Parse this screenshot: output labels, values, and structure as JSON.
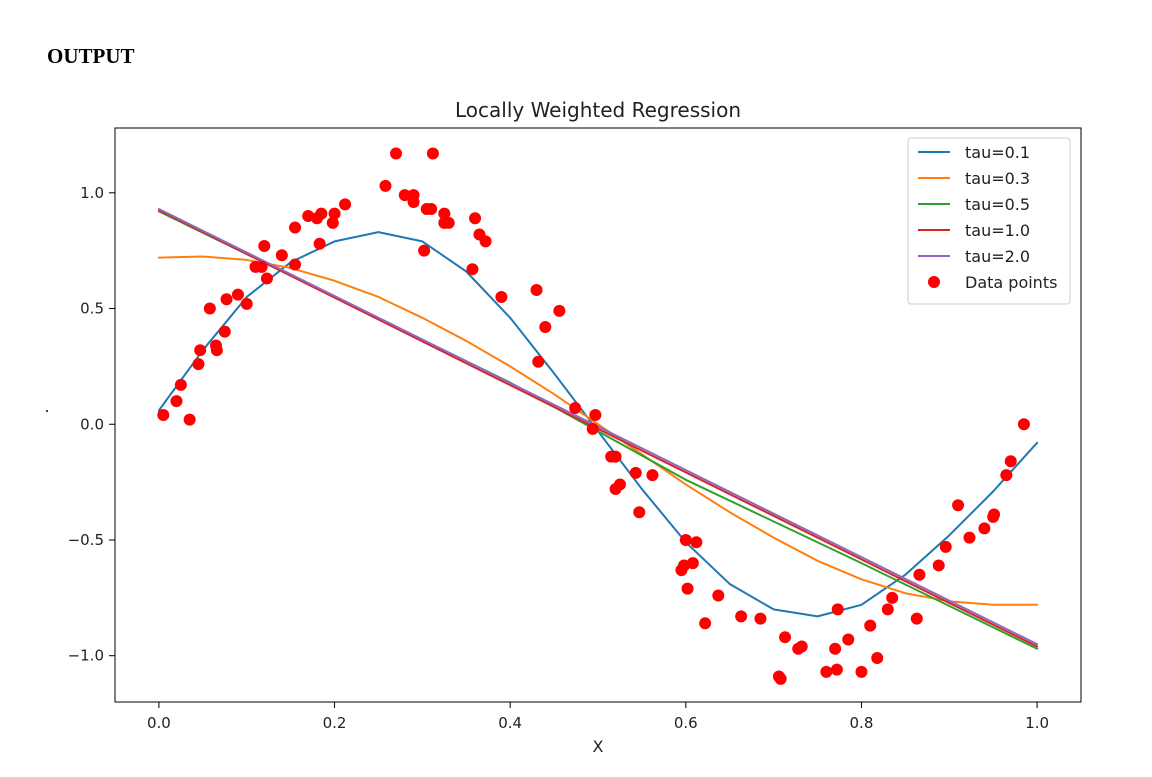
{
  "page": {
    "heading": "OUTPUT"
  },
  "chart_data": {
    "type": "line",
    "title": "Locally Weighted Regression",
    "xlabel": "X",
    "ylabel": ".",
    "xlim": [
      -0.05,
      1.05
    ],
    "ylim": [
      -1.2,
      1.28
    ],
    "xticks": [
      0.0,
      0.2,
      0.4,
      0.6,
      0.8,
      1.0
    ],
    "xtick_labels": [
      "0.0",
      "0.2",
      "0.4",
      "0.6",
      "0.8",
      "1.0"
    ],
    "yticks": [
      -1.0,
      -0.5,
      0.0,
      0.5,
      1.0
    ],
    "ytick_labels": [
      "−1.0",
      "−0.5",
      "0.0",
      "0.5",
      "1.0"
    ],
    "grid": false,
    "legend_placement": "top-right",
    "series": [
      {
        "name": "tau=0.1",
        "color": "#1f77b4",
        "x": [
          0,
          0.05,
          0.1,
          0.15,
          0.2,
          0.25,
          0.3,
          0.35,
          0.4,
          0.45,
          0.5,
          0.55,
          0.6,
          0.65,
          0.7,
          0.75,
          0.8,
          0.85,
          0.9,
          0.95,
          1.0
        ],
        "y": [
          0.06,
          0.32,
          0.55,
          0.7,
          0.79,
          0.83,
          0.79,
          0.66,
          0.46,
          0.22,
          -0.03,
          -0.28,
          -0.51,
          -0.69,
          -0.8,
          -0.83,
          -0.78,
          -0.65,
          -0.48,
          -0.29,
          -0.08
        ]
      },
      {
        "name": "tau=0.3",
        "color": "#ff7f0e",
        "x": [
          0,
          0.05,
          0.1,
          0.15,
          0.2,
          0.25,
          0.3,
          0.35,
          0.4,
          0.45,
          0.5,
          0.55,
          0.6,
          0.65,
          0.7,
          0.75,
          0.8,
          0.85,
          0.9,
          0.95,
          1.0
        ],
        "y": [
          0.72,
          0.725,
          0.71,
          0.675,
          0.62,
          0.55,
          0.46,
          0.36,
          0.25,
          0.13,
          0.0,
          -0.13,
          -0.26,
          -0.38,
          -0.49,
          -0.59,
          -0.67,
          -0.73,
          -0.765,
          -0.78,
          -0.78
        ]
      },
      {
        "name": "tau=0.5",
        "color": "#2ca02c",
        "x": [
          0,
          0.2,
          0.4,
          0.5,
          0.6,
          0.8,
          1.0
        ],
        "y": [
          0.92,
          0.55,
          0.18,
          -0.03,
          -0.24,
          -0.6,
          -0.97
        ]
      },
      {
        "name": "tau=1.0",
        "color": "#d62728",
        "x": [
          0,
          0.5,
          1.0
        ],
        "y": [
          0.925,
          -0.02,
          -0.96
        ]
      },
      {
        "name": "tau=2.0",
        "color": "#9467bd",
        "x": [
          0,
          0.5,
          1.0
        ],
        "y": [
          0.93,
          -0.01,
          -0.95
        ]
      }
    ],
    "scatter": {
      "name": "Data points",
      "color": "#ff0000",
      "points": [
        [
          0.005,
          0.04
        ],
        [
          0.02,
          0.1
        ],
        [
          0.025,
          0.17
        ],
        [
          0.035,
          0.02
        ],
        [
          0.045,
          0.26
        ],
        [
          0.047,
          0.32
        ],
        [
          0.058,
          0.5
        ],
        [
          0.065,
          0.34
        ],
        [
          0.066,
          0.32
        ],
        [
          0.075,
          0.4
        ],
        [
          0.077,
          0.54
        ],
        [
          0.09,
          0.56
        ],
        [
          0.1,
          0.52
        ],
        [
          0.11,
          0.68
        ],
        [
          0.117,
          0.68
        ],
        [
          0.12,
          0.77
        ],
        [
          0.123,
          0.63
        ],
        [
          0.14,
          0.73
        ],
        [
          0.155,
          0.69
        ],
        [
          0.155,
          0.85
        ],
        [
          0.17,
          0.9
        ],
        [
          0.18,
          0.89
        ],
        [
          0.183,
          0.78
        ],
        [
          0.185,
          0.91
        ],
        [
          0.198,
          0.87
        ],
        [
          0.2,
          0.91
        ],
        [
          0.212,
          0.95
        ],
        [
          0.258,
          1.03
        ],
        [
          0.27,
          1.17
        ],
        [
          0.28,
          0.99
        ],
        [
          0.29,
          0.96
        ],
        [
          0.29,
          0.99
        ],
        [
          0.302,
          0.75
        ],
        [
          0.305,
          0.93
        ],
        [
          0.31,
          0.93
        ],
        [
          0.312,
          1.17
        ],
        [
          0.325,
          0.87
        ],
        [
          0.325,
          0.91
        ],
        [
          0.33,
          0.87
        ],
        [
          0.357,
          0.67
        ],
        [
          0.36,
          0.89
        ],
        [
          0.365,
          0.82
        ],
        [
          0.372,
          0.79
        ],
        [
          0.39,
          0.55
        ],
        [
          0.43,
          0.58
        ],
        [
          0.432,
          0.27
        ],
        [
          0.44,
          0.42
        ],
        [
          0.456,
          0.49
        ],
        [
          0.474,
          0.07
        ],
        [
          0.494,
          -0.02
        ],
        [
          0.497,
          0.04
        ],
        [
          0.515,
          -0.14
        ],
        [
          0.52,
          -0.28
        ],
        [
          0.52,
          -0.14
        ],
        [
          0.525,
          -0.26
        ],
        [
          0.543,
          -0.21
        ],
        [
          0.547,
          -0.38
        ],
        [
          0.562,
          -0.22
        ],
        [
          0.595,
          -0.63
        ],
        [
          0.598,
          -0.61
        ],
        [
          0.6,
          -0.5
        ],
        [
          0.602,
          -0.71
        ],
        [
          0.608,
          -0.6
        ],
        [
          0.612,
          -0.51
        ],
        [
          0.622,
          -0.86
        ],
        [
          0.637,
          -0.74
        ],
        [
          0.663,
          -0.83
        ],
        [
          0.685,
          -0.84
        ],
        [
          0.706,
          -1.09
        ],
        [
          0.708,
          -1.1
        ],
        [
          0.713,
          -0.92
        ],
        [
          0.728,
          -0.97
        ],
        [
          0.732,
          -0.96
        ],
        [
          0.76,
          -1.07
        ],
        [
          0.77,
          -0.97
        ],
        [
          0.772,
          -1.06
        ],
        [
          0.773,
          -0.8
        ],
        [
          0.785,
          -0.93
        ],
        [
          0.8,
          -1.07
        ],
        [
          0.81,
          -0.87
        ],
        [
          0.818,
          -1.01
        ],
        [
          0.83,
          -0.8
        ],
        [
          0.835,
          -0.75
        ],
        [
          0.863,
          -0.84
        ],
        [
          0.866,
          -0.65
        ],
        [
          0.888,
          -0.61
        ],
        [
          0.896,
          -0.53
        ],
        [
          0.91,
          -0.35
        ],
        [
          0.923,
          -0.49
        ],
        [
          0.94,
          -0.45
        ],
        [
          0.95,
          -0.4
        ],
        [
          0.951,
          -0.39
        ],
        [
          0.965,
          -0.22
        ],
        [
          0.97,
          -0.16
        ],
        [
          0.985,
          0.0
        ]
      ]
    }
  }
}
